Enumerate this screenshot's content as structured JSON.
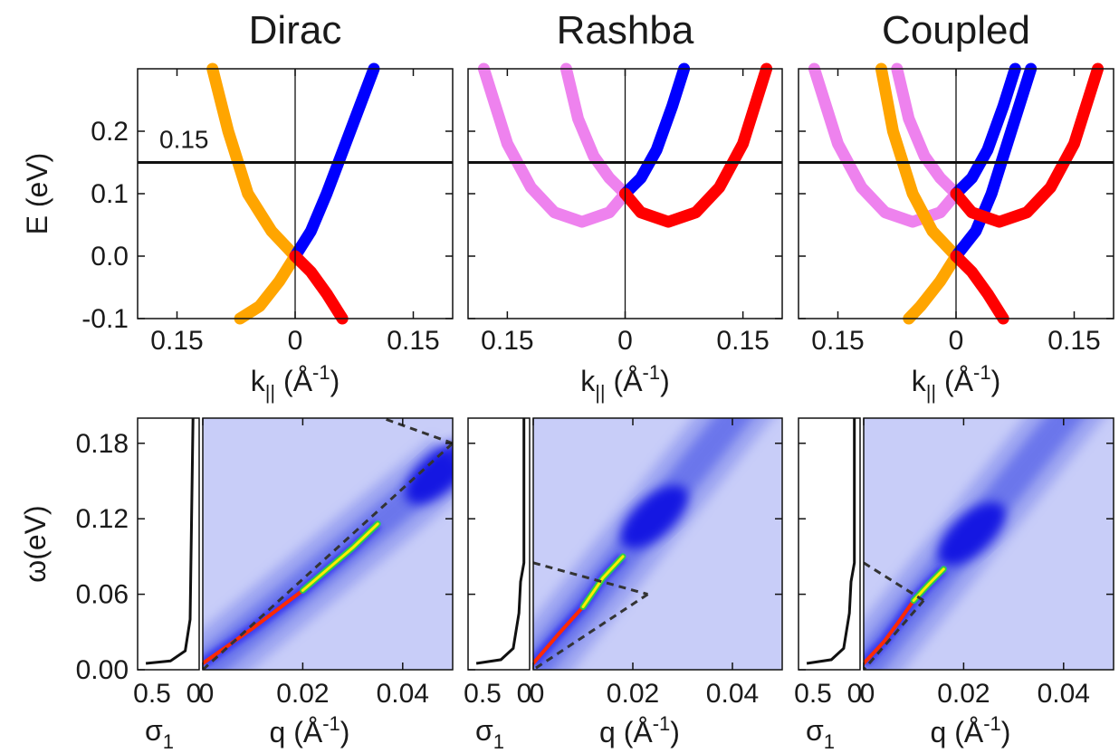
{
  "chart_data": [
    {
      "type": "line",
      "title": "Dirac",
      "xlabel_main": "k",
      "xlabel_sub": "||",
      "xlabel_unit_open": " (Å",
      "xlabel_unit_sup": "-1",
      "xlabel_unit_close": ")",
      "ylabel": "E (eV)",
      "xlim": [
        -0.2,
        0.2
      ],
      "ylim": [
        -0.1,
        0.3
      ],
      "xticks": [
        -0.15,
        0,
        0.15
      ],
      "xtick_labels": [
        "0.15",
        "0",
        "0.15"
      ],
      "yticks": [
        -0.1,
        0.0,
        0.1,
        0.2
      ],
      "ytick_labels": [
        "-0.1",
        "0.0",
        "0.1",
        "0.2"
      ],
      "hline": 0.15,
      "annotation": "0.15",
      "series": [
        {
          "color": "#ffa500",
          "points": [
            [
              -0.105,
              0.3
            ],
            [
              -0.085,
              0.2
            ],
            [
              -0.06,
              0.1
            ],
            [
              -0.03,
              0.04
            ],
            [
              0,
              0.0
            ],
            [
              -0.02,
              -0.04
            ],
            [
              -0.045,
              -0.08
            ],
            [
              -0.07,
              -0.1
            ]
          ]
        },
        {
          "color": "#0000ff",
          "points": [
            [
              0,
              0.0
            ],
            [
              0.02,
              0.04
            ],
            [
              0.04,
              0.1
            ],
            [
              0.07,
              0.2
            ],
            [
              0.1,
              0.3
            ]
          ]
        },
        {
          "color": "#ff0000",
          "points": [
            [
              0,
              0.0
            ],
            [
              0.02,
              -0.025
            ],
            [
              0.04,
              -0.06
            ],
            [
              0.06,
              -0.1
            ]
          ]
        }
      ]
    },
    {
      "type": "line",
      "title": "Rashba",
      "xlabel_main": "k",
      "xlabel_sub": "||",
      "xlabel_unit_open": " (Å",
      "xlabel_unit_sup": "-1",
      "xlabel_unit_close": ")",
      "xlim": [
        -0.2,
        0.2
      ],
      "ylim": [
        -0.1,
        0.3
      ],
      "xticks": [
        -0.15,
        0,
        0.15
      ],
      "xtick_labels": [
        "0.15",
        "0",
        "0.15"
      ],
      "hline": 0.15,
      "series": [
        {
          "color": "#ee82ee",
          "points": [
            [
              -0.18,
              0.3
            ],
            [
              -0.15,
              0.18
            ],
            [
              -0.12,
              0.11
            ],
            [
              -0.09,
              0.07
            ],
            [
              -0.055,
              0.055
            ],
            [
              -0.02,
              0.07
            ],
            [
              0,
              0.1
            ]
          ]
        },
        {
          "color": "#ee82ee",
          "points": [
            [
              -0.075,
              0.3
            ],
            [
              -0.06,
              0.22
            ],
            [
              -0.04,
              0.16
            ],
            [
              -0.02,
              0.125
            ],
            [
              0,
              0.1
            ]
          ]
        },
        {
          "color": "#0000ff",
          "points": [
            [
              0,
              0.1
            ],
            [
              0.02,
              0.125
            ],
            [
              0.04,
              0.17
            ],
            [
              0.06,
              0.24
            ],
            [
              0.075,
              0.3
            ]
          ]
        },
        {
          "color": "#ff0000",
          "points": [
            [
              0,
              0.1
            ],
            [
              0.02,
              0.07
            ],
            [
              0.055,
              0.055
            ],
            [
              0.09,
              0.07
            ],
            [
              0.12,
              0.11
            ],
            [
              0.15,
              0.18
            ],
            [
              0.18,
              0.3
            ]
          ]
        }
      ]
    },
    {
      "type": "line",
      "title": "Coupled",
      "xlabel_main": "k",
      "xlabel_sub": "||",
      "xlabel_unit_open": " (Å",
      "xlabel_unit_sup": "-1",
      "xlabel_unit_close": ")",
      "xlim": [
        -0.2,
        0.2
      ],
      "ylim": [
        -0.1,
        0.3
      ],
      "xticks": [
        -0.15,
        0,
        0.15
      ],
      "xtick_labels": [
        "0.15",
        "0",
        "0.15"
      ],
      "hline": 0.15,
      "series": [
        {
          "color": "#ee82ee",
          "points": [
            [
              -0.18,
              0.3
            ],
            [
              -0.15,
              0.18
            ],
            [
              -0.12,
              0.11
            ],
            [
              -0.09,
              0.07
            ],
            [
              -0.055,
              0.055
            ],
            [
              -0.02,
              0.07
            ],
            [
              0,
              0.1
            ]
          ]
        },
        {
          "color": "#ee82ee",
          "points": [
            [
              -0.075,
              0.3
            ],
            [
              -0.06,
              0.22
            ],
            [
              -0.04,
              0.16
            ],
            [
              -0.02,
              0.125
            ],
            [
              0,
              0.1
            ]
          ]
        },
        {
          "color": "#ffa500",
          "points": [
            [
              -0.095,
              0.3
            ],
            [
              -0.08,
              0.2
            ],
            [
              -0.055,
              0.1
            ],
            [
              -0.03,
              0.04
            ],
            [
              0,
              0.0
            ],
            [
              -0.02,
              -0.04
            ],
            [
              -0.045,
              -0.08
            ],
            [
              -0.06,
              -0.1
            ]
          ]
        },
        {
          "color": "#0000ff",
          "points": [
            [
              0,
              0.1
            ],
            [
              0.02,
              0.125
            ],
            [
              0.04,
              0.17
            ],
            [
              0.06,
              0.24
            ],
            [
              0.075,
              0.3
            ]
          ]
        },
        {
          "color": "#0000ff",
          "points": [
            [
              0,
              0.0
            ],
            [
              0.025,
              0.04
            ],
            [
              0.045,
              0.1
            ],
            [
              0.07,
              0.2
            ],
            [
              0.095,
              0.3
            ]
          ]
        },
        {
          "color": "#ff0000",
          "points": [
            [
              0,
              0.1
            ],
            [
              0.02,
              0.07
            ],
            [
              0.055,
              0.055
            ],
            [
              0.09,
              0.07
            ],
            [
              0.12,
              0.11
            ],
            [
              0.15,
              0.18
            ],
            [
              0.18,
              0.3
            ]
          ]
        },
        {
          "color": "#ff0000",
          "points": [
            [
              0,
              0.0
            ],
            [
              0.02,
              -0.025
            ],
            [
              0.04,
              -0.06
            ],
            [
              0.06,
              -0.1
            ]
          ]
        }
      ]
    },
    {
      "type": "line",
      "panel": "sigma",
      "xlabel_main": "σ",
      "xlabel_sub": "1",
      "ylabel": "ω(eV)",
      "xtick_labels": [
        "0.5",
        "0"
      ],
      "ylim": [
        0,
        0.2
      ],
      "yticks": [
        0,
        0.06,
        0.12,
        0.18
      ],
      "ytick_labels": [
        "0.00",
        "0.06",
        "0.12",
        "0.18"
      ],
      "series": [
        {
          "color": "#111111",
          "points": [
            [
              0.65,
              0.005
            ],
            [
              0.35,
              0.007
            ],
            [
              0.17,
              0.015
            ],
            [
              0.11,
              0.04
            ],
            [
              0.075,
              0.2
            ]
          ]
        }
      ]
    },
    {
      "type": "heatmap",
      "panel": "loss-dirac",
      "xlabel_main": "q",
      "xlabel_unit_open": " (Å",
      "xlabel_unit_sup": "-1",
      "xlabel_unit_close": ")",
      "xlim": [
        0,
        0.05
      ],
      "ylim": [
        0,
        0.2
      ],
      "xticks": [
        0,
        0.02,
        0.04
      ],
      "xtick_labels": [
        "0",
        "0.02",
        "0.04"
      ],
      "plasmon": [
        [
          0,
          0.005
        ],
        [
          0.01,
          0.033
        ],
        [
          0.02,
          0.063
        ],
        [
          0.03,
          0.097
        ],
        [
          0.035,
          0.116
        ]
      ],
      "dashed_lines": [
        [
          [
            0,
            0
          ],
          [
            0.05,
            0.18
          ]
        ],
        [
          [
            0.05,
            0.18
          ],
          [
            0.036,
            0.2
          ]
        ]
      ]
    },
    {
      "type": "line",
      "panel": "sigma",
      "xlabel_main": "σ",
      "xlabel_sub": "1",
      "xtick_labels": [
        "0.5",
        "0"
      ],
      "ylim": [
        0,
        0.2
      ],
      "yticks": [
        0,
        0.06,
        0.12,
        0.18
      ],
      "series": [
        {
          "color": "#111111",
          "points": [
            [
              0.65,
              0.005
            ],
            [
              0.35,
              0.008
            ],
            [
              0.2,
              0.017
            ],
            [
              0.13,
              0.045
            ],
            [
              0.11,
              0.07
            ],
            [
              0.07,
              0.085
            ],
            [
              0.07,
              0.2
            ]
          ]
        }
      ]
    },
    {
      "type": "heatmap",
      "panel": "loss-rashba",
      "xlabel_main": "q",
      "xlabel_unit_open": " (Å",
      "xlabel_unit_sup": "-1",
      "xlabel_unit_close": ")",
      "xlim": [
        0,
        0.05
      ],
      "ylim": [
        0,
        0.2
      ],
      "xticks": [
        0,
        0.02,
        0.04
      ],
      "xtick_labels": [
        "0",
        "0.02",
        "0.04"
      ],
      "plasmon": [
        [
          0,
          0.005
        ],
        [
          0.005,
          0.028
        ],
        [
          0.01,
          0.05
        ],
        [
          0.014,
          0.073
        ],
        [
          0.018,
          0.09
        ]
      ],
      "dashed_lines": [
        [
          [
            0,
            0.085
          ],
          [
            0.023,
            0.06
          ]
        ],
        [
          [
            0.023,
            0.06
          ],
          [
            0,
            0
          ]
        ]
      ]
    },
    {
      "type": "line",
      "panel": "sigma",
      "xlabel_main": "σ",
      "xlabel_sub": "1",
      "xtick_labels": [
        "0.5",
        "0"
      ],
      "ylim": [
        0,
        0.2
      ],
      "yticks": [
        0,
        0.06,
        0.12,
        0.18
      ],
      "series": [
        {
          "color": "#111111",
          "points": [
            [
              0.65,
              0.005
            ],
            [
              0.35,
              0.008
            ],
            [
              0.2,
              0.017
            ],
            [
              0.13,
              0.045
            ],
            [
              0.11,
              0.07
            ],
            [
              0.07,
              0.085
            ],
            [
              0.07,
              0.2
            ]
          ]
        }
      ]
    },
    {
      "type": "heatmap",
      "panel": "loss-coupled",
      "xlabel_main": "q",
      "xlabel_unit_open": " (Å",
      "xlabel_unit_sup": "-1",
      "xlabel_unit_close": ")",
      "xlim": [
        0,
        0.05
      ],
      "ylim": [
        0,
        0.2
      ],
      "xticks": [
        0,
        0.02,
        0.04
      ],
      "xtick_labels": [
        "0",
        "0.02",
        "0.04"
      ],
      "plasmon": [
        [
          0,
          0.005
        ],
        [
          0.004,
          0.022
        ],
        [
          0.007,
          0.038
        ],
        [
          0.01,
          0.055
        ],
        [
          0.013,
          0.068
        ],
        [
          0.016,
          0.08
        ]
      ],
      "dashed_lines": [
        [
          [
            0,
            0.085
          ],
          [
            0.012,
            0.055
          ]
        ],
        [
          [
            0.012,
            0.055
          ],
          [
            0,
            0
          ]
        ]
      ]
    }
  ]
}
